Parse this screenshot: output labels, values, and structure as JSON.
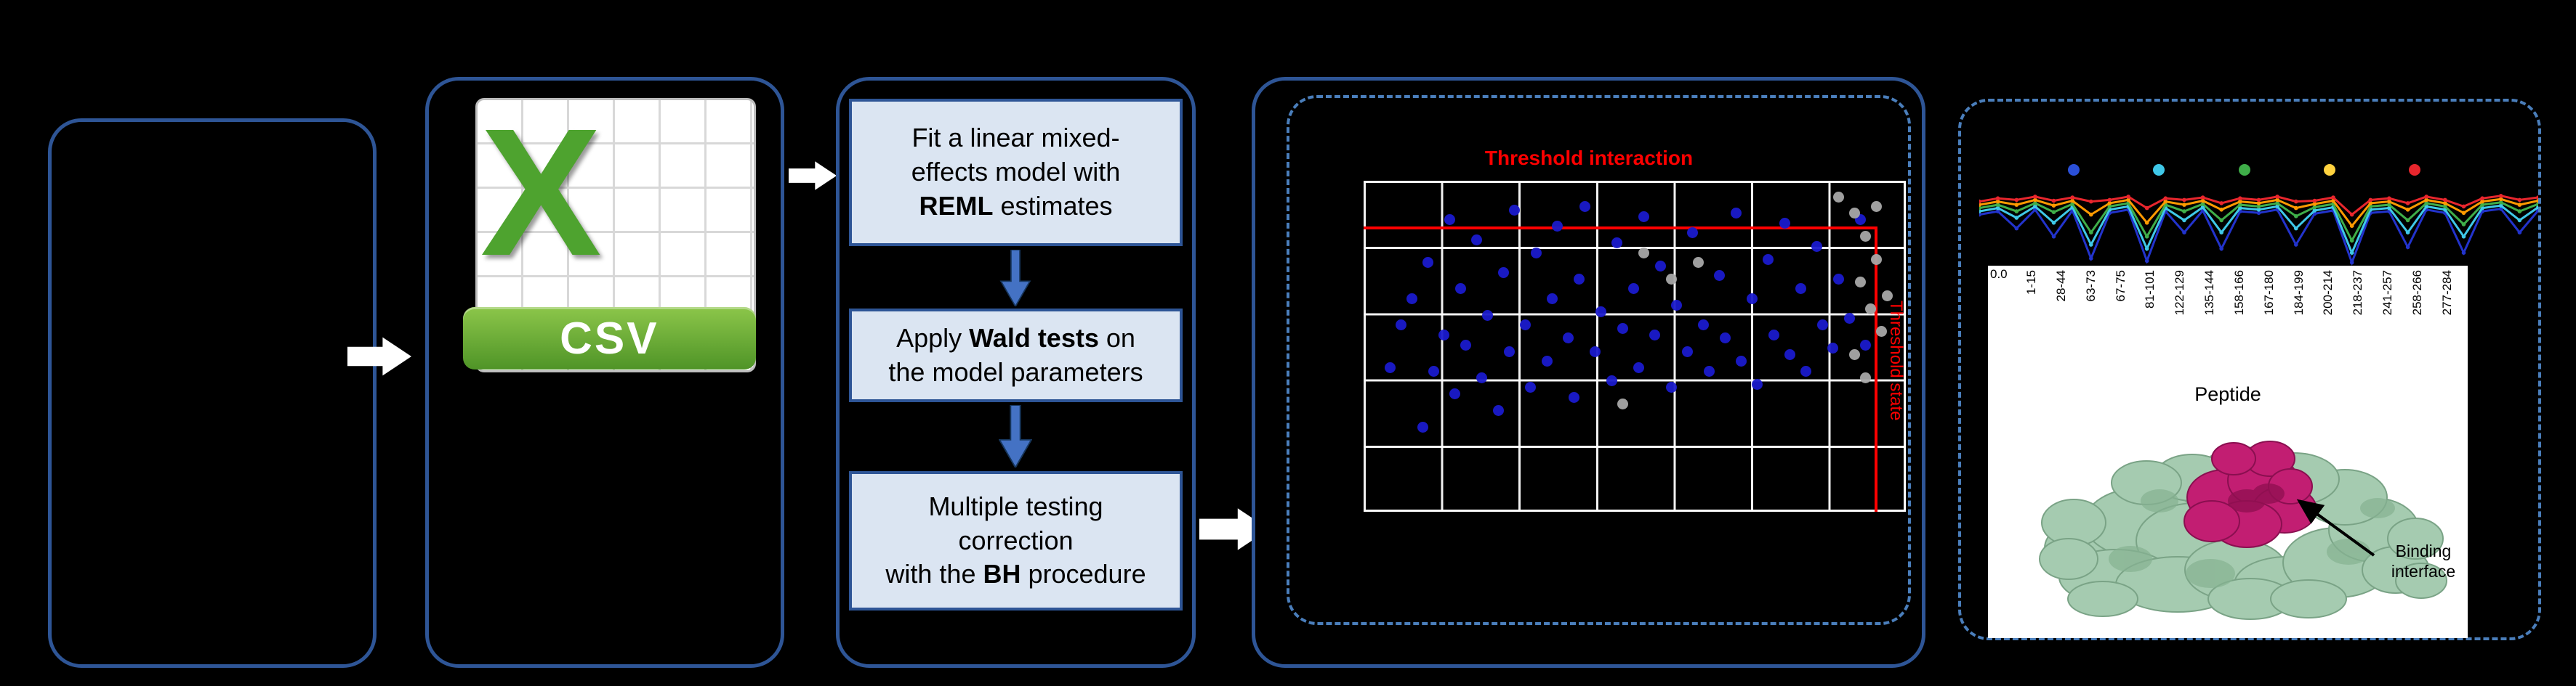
{
  "colors": {
    "panel_border": "#2e5596",
    "dashed_border": "#4a7ebb",
    "step_fill": "#dbe5f2",
    "arrow_blue": "#4472c4",
    "threshold_red": "#fe0000",
    "csv_green": "#4ea32f",
    "scatter_blue": "#1a1acc",
    "scatter_gray": "#a8a8a8"
  },
  "csv": {
    "letter": "X",
    "label": "CSV"
  },
  "workflow": {
    "steps": [
      {
        "pre": "Fit a linear mixed-\neffects model with\n",
        "bold": "REML",
        "post": " estimates"
      },
      {
        "pre": "Apply ",
        "bold": "Wald tests",
        "post": " on\nthe model parameters"
      },
      {
        "pre": "Multiple testing\ncorrection\nwith the ",
        "bold": "BH",
        "post": " procedure"
      }
    ]
  },
  "scatter": {
    "type": "scatter",
    "title": "Threshold interaction",
    "side_label": "Threshold state",
    "points_blue": [
      [
        5,
        57
      ],
      [
        7,
        44
      ],
      [
        9,
        36
      ],
      [
        11,
        75
      ],
      [
        12,
        25
      ],
      [
        13,
        58
      ],
      [
        15,
        47
      ],
      [
        16,
        12
      ],
      [
        17,
        65
      ],
      [
        18,
        33
      ],
      [
        19,
        50
      ],
      [
        21,
        18
      ],
      [
        22,
        60
      ],
      [
        23,
        41
      ],
      [
        25,
        70
      ],
      [
        26,
        28
      ],
      [
        27,
        52
      ],
      [
        28,
        9
      ],
      [
        30,
        44
      ],
      [
        31,
        63
      ],
      [
        32,
        22
      ],
      [
        34,
        55
      ],
      [
        35,
        36
      ],
      [
        36,
        14
      ],
      [
        38,
        48
      ],
      [
        39,
        66
      ],
      [
        40,
        30
      ],
      [
        41,
        8
      ],
      [
        43,
        52
      ],
      [
        44,
        40
      ],
      [
        46,
        61
      ],
      [
        47,
        19
      ],
      [
        48,
        45
      ],
      [
        50,
        33
      ],
      [
        51,
        57
      ],
      [
        52,
        11
      ],
      [
        54,
        47
      ],
      [
        55,
        26
      ],
      [
        57,
        63
      ],
      [
        58,
        38
      ],
      [
        60,
        52
      ],
      [
        61,
        16
      ],
      [
        63,
        44
      ],
      [
        64,
        58
      ],
      [
        66,
        29
      ],
      [
        67,
        48
      ],
      [
        69,
        10
      ],
      [
        70,
        55
      ],
      [
        72,
        36
      ],
      [
        73,
        62
      ],
      [
        75,
        24
      ],
      [
        76,
        47
      ],
      [
        78,
        13
      ],
      [
        79,
        53
      ],
      [
        81,
        33
      ],
      [
        82,
        58
      ],
      [
        84,
        20
      ],
      [
        85,
        44
      ],
      [
        87,
        51
      ],
      [
        88,
        30
      ],
      [
        90,
        42
      ],
      [
        92,
        12
      ],
      [
        93,
        50
      ]
    ],
    "points_gray": [
      [
        88,
        5
      ],
      [
        91,
        10
      ],
      [
        93,
        17
      ],
      [
        95,
        24
      ],
      [
        92,
        31
      ],
      [
        94,
        39
      ],
      [
        96,
        46
      ],
      [
        91,
        53
      ],
      [
        93,
        60
      ],
      [
        95,
        8
      ],
      [
        52,
        22
      ],
      [
        57,
        30
      ],
      [
        62,
        25
      ],
      [
        48,
        68
      ],
      [
        97,
        35
      ]
    ]
  },
  "results": {
    "ytick": "0.0",
    "xlabel": "Peptide",
    "binding_label": "Binding interface",
    "timepoint_colors": [
      "#2b50d8",
      "#3fc8e8",
      "#3fae49",
      "#ffd23f",
      "#e8262d"
    ],
    "peptides": [
      "1-15",
      "28-44",
      "63-73",
      "67-75",
      "81-101",
      "122-129",
      "135-144",
      "158-166",
      "167-180",
      "184-199",
      "200-214",
      "218-237",
      "241-257",
      "258-266",
      "277-284"
    ],
    "series": [
      {
        "name": "blue",
        "color": "#2233cc",
        "values": [
          62,
          66,
          45,
          68,
          35,
          67,
          8,
          64,
          68,
          5,
          66,
          40,
          67,
          20,
          66,
          64,
          68,
          25,
          63,
          67,
          3,
          64,
          66,
          22,
          68,
          64,
          15,
          66,
          69,
          40,
          67
        ]
      },
      {
        "name": "cyan",
        "color": "#3fc8e8",
        "values": [
          66,
          70,
          58,
          72,
          52,
          71,
          25,
          68,
          72,
          20,
          70,
          55,
          71,
          40,
          70,
          68,
          72,
          45,
          67,
          71,
          15,
          68,
          70,
          40,
          72,
          68,
          35,
          70,
          73,
          55,
          71
        ]
      },
      {
        "name": "green",
        "color": "#3fae49",
        "values": [
          70,
          74,
          66,
          76,
          65,
          75,
          40,
          72,
          76,
          35,
          74,
          66,
          75,
          55,
          74,
          72,
          76,
          60,
          71,
          75,
          30,
          72,
          74,
          55,
          76,
          72,
          50,
          74,
          77,
          66,
          75
        ]
      },
      {
        "name": "orange",
        "color": "#ff9a00",
        "values": [
          74,
          78,
          74,
          80,
          73,
          79,
          62,
          76,
          80,
          52,
          78,
          74,
          79,
          68,
          78,
          76,
          80,
          70,
          75,
          79,
          48,
          76,
          78,
          68,
          80,
          76,
          64,
          78,
          81,
          74,
          79
        ]
      },
      {
        "name": "red",
        "color": "#e8262d",
        "values": [
          78,
          82,
          80,
          84,
          79,
          83,
          78,
          80,
          84,
          70,
          82,
          80,
          83,
          76,
          82,
          80,
          84,
          78,
          79,
          83,
          62,
          80,
          82,
          76,
          84,
          80,
          72,
          82,
          85,
          80,
          83
        ]
      }
    ]
  }
}
